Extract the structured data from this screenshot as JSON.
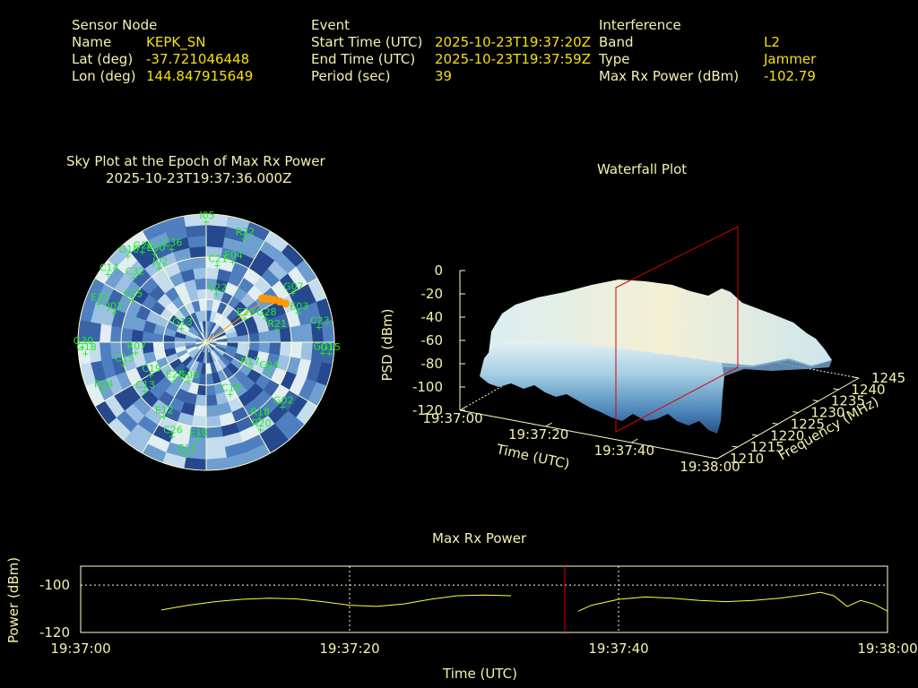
{
  "header": {
    "sensor_node": {
      "heading": "Sensor Node",
      "rows": [
        {
          "label": "Name",
          "value": "KEPK_SN"
        },
        {
          "label": "Lat (deg)",
          "value": "-37.721046448"
        },
        {
          "label": "Lon (deg)",
          "value": "144.847915649"
        }
      ]
    },
    "event": {
      "heading": "Event",
      "rows": [
        {
          "label": "Start Time (UTC)",
          "value": "2025-10-23T19:37:20Z"
        },
        {
          "label": "End Time (UTC)",
          "value": "2025-10-23T19:37:59Z"
        },
        {
          "label": "Period (sec)",
          "value": "39"
        }
      ]
    },
    "interference": {
      "heading": "Interference",
      "rows": [
        {
          "label": "Band",
          "value": "L2"
        },
        {
          "label": "Type",
          "value": "Jammer"
        },
        {
          "label": "Max Rx Power (dBm)",
          "value": "-102.79"
        }
      ]
    }
  },
  "colors": {
    "label_text": "#f5f0b0",
    "value_text": "#f4e00e",
    "satellite_label": "#22ee22",
    "ring": "#ffffd0",
    "marker_line": "#dd0000",
    "trace": "#ffff40",
    "jammer_track": "#ff9900"
  },
  "chart_data": [
    {
      "type": "scatter",
      "name": "sky_plot",
      "title": "Sky Plot at the Epoch of Max Rx Power",
      "subtitle": "2025-10-23T19:37:36.000Z",
      "jammer_track": [
        {
          "az": 52,
          "el": 40
        },
        {
          "az": 54,
          "el": 38
        },
        {
          "az": 56,
          "el": 36
        },
        {
          "az": 58,
          "el": 34
        },
        {
          "az": 61,
          "el": 31
        },
        {
          "az": 64,
          "el": 28
        }
      ],
      "satellites": [
        {
          "id": "I05",
          "az": 0,
          "el": 5
        },
        {
          "id": "G10",
          "az": 318,
          "el": 8
        },
        {
          "id": "G20",
          "az": 325,
          "el": 12
        },
        {
          "id": "E30",
          "az": 330,
          "el": 18
        },
        {
          "id": "E36",
          "az": 340,
          "el": 20
        },
        {
          "id": "R22",
          "az": 20,
          "el": 12
        },
        {
          "id": "C14",
          "az": 305,
          "el": 6
        },
        {
          "id": "C32",
          "az": 312,
          "el": 22
        },
        {
          "id": "J02",
          "az": 328,
          "el": 28
        },
        {
          "id": "C21",
          "az": 8,
          "el": 35
        },
        {
          "id": "E04",
          "az": 18,
          "el": 30
        },
        {
          "id": "C25",
          "az": 300,
          "el": 30
        },
        {
          "id": "E31",
          "az": 290,
          "el": 10
        },
        {
          "id": "J03",
          "az": 288,
          "el": 22
        },
        {
          "id": "G07",
          "az": 60,
          "el": 20
        },
        {
          "id": "E03",
          "az": 72,
          "el": 22
        },
        {
          "id": "C22",
          "az": 12,
          "el": 55
        },
        {
          "id": "G28",
          "az": 68,
          "el": 45
        },
        {
          "id": "E23",
          "az": 58,
          "el": 58
        },
        {
          "id": "R21",
          "az": 80,
          "el": 40
        },
        {
          "id": "C23",
          "az": 82,
          "el": 10
        },
        {
          "id": "G01",
          "az": 95,
          "el": 8
        },
        {
          "id": "G15",
          "az": 95,
          "el": 3
        },
        {
          "id": "G13",
          "az": 300,
          "el": 70
        },
        {
          "id": "C15",
          "az": 255,
          "el": 30
        },
        {
          "id": "R07",
          "az": 262,
          "el": 40
        },
        {
          "id": "C19",
          "az": 240,
          "el": 45
        },
        {
          "id": "G18",
          "az": 265,
          "el": 5
        },
        {
          "id": "G30",
          "az": 268,
          "el": 3
        },
        {
          "id": "C13",
          "az": 232,
          "el": 35
        },
        {
          "id": "E28",
          "az": 220,
          "el": 55
        },
        {
          "id": "G06",
          "az": 205,
          "el": 60
        },
        {
          "id": "R24",
          "az": 245,
          "el": 10
        },
        {
          "id": "E12",
          "az": 210,
          "el": 30
        },
        {
          "id": "E11",
          "az": 190,
          "el": 10
        },
        {
          "id": "C26",
          "az": 200,
          "el": 20
        },
        {
          "id": "E10",
          "az": 185,
          "el": 22
        },
        {
          "id": "C10",
          "az": 155,
          "el": 50
        },
        {
          "id": "G02",
          "az": 130,
          "el": 20
        },
        {
          "id": "R20",
          "az": 148,
          "el": 18
        },
        {
          "id": "R18",
          "az": 145,
          "el": 25
        },
        {
          "id": "C04",
          "az": 115,
          "el": 42
        },
        {
          "id": "R17",
          "az": 120,
          "el": 55
        }
      ]
    },
    {
      "type": "area",
      "name": "waterfall_plot",
      "title": "Waterfall Plot",
      "xlabel": "Time (UTC)",
      "ylabel": "Frequency (MHz)",
      "zlabel": "PSD (dBm)",
      "x_ticks": [
        "19:37:00",
        "19:37:20",
        "19:37:40",
        "19:38:00"
      ],
      "y_ticks": [
        "1210",
        "1215",
        "1220",
        "1225",
        "1230",
        "1235",
        "1240",
        "1245"
      ],
      "z_ticks": [
        "0",
        "-20",
        "-40",
        "-60",
        "-80",
        "-100",
        "-120"
      ],
      "zlim": [
        -120,
        0
      ],
      "marker_time": "19:37:36"
    },
    {
      "type": "line",
      "name": "max_rx_power",
      "title": "Max Rx Power",
      "xlabel": "Time (UTC)",
      "ylabel": "Power (dBm)",
      "x_ticks": [
        "19:37:00",
        "19:37:20",
        "19:37:40",
        "19:38:00"
      ],
      "y_ticks": [
        "-100",
        "-120"
      ],
      "xlim": [
        0,
        60
      ],
      "ylim": [
        -120,
        -92
      ],
      "marker_time_sec": 36,
      "segments": [
        [
          [
            6,
            -110.5
          ],
          [
            8,
            -108.5
          ],
          [
            10,
            -107
          ],
          [
            12,
            -106
          ],
          [
            14,
            -105.5
          ],
          [
            16,
            -105.8
          ],
          [
            18,
            -107
          ],
          [
            20,
            -108.5
          ],
          [
            22,
            -109
          ],
          [
            24,
            -108
          ],
          [
            26,
            -106
          ],
          [
            28,
            -104.5
          ],
          [
            30,
            -104.2
          ],
          [
            32,
            -104.5
          ]
        ],
        [
          [
            37,
            -111
          ],
          [
            38,
            -108.5
          ],
          [
            40,
            -106
          ],
          [
            42,
            -105
          ],
          [
            44,
            -105.5
          ],
          [
            46,
            -106.5
          ],
          [
            48,
            -107
          ],
          [
            50,
            -106.5
          ],
          [
            52,
            -105.5
          ],
          [
            54,
            -104
          ],
          [
            55,
            -103
          ],
          [
            56,
            -104.5
          ],
          [
            57,
            -109
          ],
          [
            58,
            -106.5
          ],
          [
            59,
            -108
          ],
          [
            60,
            -111
          ]
        ]
      ]
    }
  ]
}
